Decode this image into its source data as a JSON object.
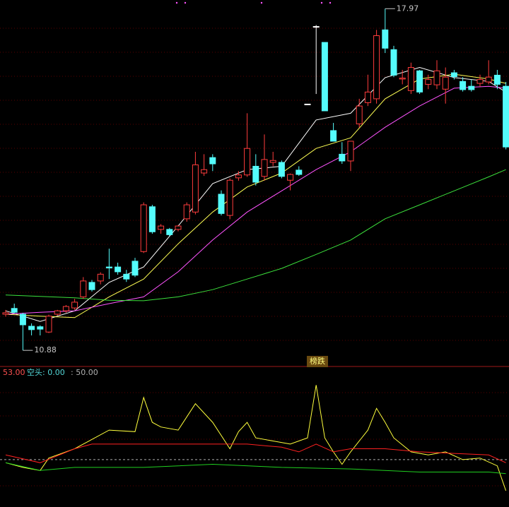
{
  "chart_data": [
    {
      "type": "candlestick",
      "ylim": [
        10.56,
        18.15
      ],
      "up_color": "#ff3c3c",
      "down_color": "#54fcfc",
      "open": [
        11.63,
        11.75,
        11.63,
        11.38,
        11.37,
        11.26,
        11.63,
        11.7,
        11.76,
        11.99,
        12.29,
        12.32,
        12.61,
        12.61,
        12.46,
        12.73,
        12.93,
        13.86,
        13.39,
        13.39,
        13.39,
        13.61,
        13.75,
        14.56,
        14.88,
        14.12,
        13.68,
        14.46,
        14.52,
        14.7,
        14.49,
        14.78,
        14.78,
        14.41,
        14.62,
        15.99,
        17.6,
        17.27,
        15.44,
        14.95,
        14.81,
        15.58,
        16.02,
        16.1,
        17.53,
        17.12,
        16.51,
        16.27,
        16.68,
        16.4,
        16.39,
        16.3,
        16.64,
        16.46,
        16.36,
        16.42,
        16.45,
        16.59,
        16.36
      ],
      "high": [
        11.72,
        11.85,
        11.66,
        11.44,
        11.4,
        11.62,
        11.72,
        11.82,
        11.95,
        12.4,
        12.34,
        12.5,
        12.99,
        12.7,
        12.55,
        12.8,
        13.95,
        13.9,
        13.5,
        13.42,
        13.48,
        13.95,
        15.0,
        14.95,
        14.95,
        14.2,
        14.45,
        14.6,
        15.8,
        14.95,
        15.36,
        15.0,
        14.82,
        14.55,
        14.7,
        15.99,
        17.63,
        17.27,
        15.6,
        15.2,
        15.2,
        16.1,
        16.6,
        17.53,
        17.97,
        17.2,
        16.7,
        16.85,
        16.7,
        16.6,
        16.9,
        16.75,
        16.7,
        16.55,
        16.5,
        16.6,
        16.9,
        16.7,
        16.45
      ],
      "low": [
        11.58,
        11.65,
        10.88,
        11.19,
        11.19,
        11.24,
        11.6,
        11.66,
        11.72,
        11.95,
        12.1,
        12.25,
        12.36,
        12.45,
        12.3,
        12.4,
        12.9,
        13.3,
        13.3,
        13.25,
        13.35,
        13.55,
        13.7,
        14.5,
        14.6,
        13.68,
        13.6,
        14.4,
        14.48,
        14.3,
        14.4,
        14.7,
        14.45,
        14.2,
        14.5,
        15.99,
        16.2,
        15.85,
        15.22,
        14.75,
        14.6,
        15.5,
        15.95,
        16.0,
        17.05,
        16.55,
        16.4,
        16.2,
        16.2,
        16.3,
        16.3,
        16.0,
        16.5,
        16.25,
        16.25,
        16.35,
        16.4,
        16.3,
        15.05
      ],
      "close": [
        11.66,
        11.67,
        11.41,
        11.31,
        11.32,
        11.59,
        11.7,
        11.79,
        11.88,
        12.32,
        12.14,
        12.46,
        12.59,
        12.51,
        12.36,
        12.44,
        13.9,
        13.34,
        13.46,
        13.28,
        13.46,
        13.9,
        14.73,
        14.63,
        14.75,
        13.72,
        14.41,
        14.52,
        15.07,
        14.37,
        14.84,
        14.82,
        14.49,
        14.53,
        14.53,
        15.99,
        17.6,
        15.85,
        15.22,
        14.81,
        15.22,
        15.95,
        16.24,
        17.41,
        17.15,
        16.59,
        16.53,
        16.75,
        16.24,
        16.5,
        16.68,
        16.55,
        16.56,
        16.29,
        16.29,
        16.5,
        16.55,
        16.4,
        15.1
      ],
      "series": [
        {
          "color": "#ffffff",
          "x": [
            0,
            4,
            8,
            12,
            16,
            20,
            24,
            28,
            32,
            36,
            40,
            44,
            48,
            52,
            56,
            58
          ],
          "values": [
            11.7,
            11.48,
            11.7,
            12.29,
            12.61,
            13.46,
            14.34,
            14.63,
            14.7,
            15.66,
            15.8,
            16.54,
            16.75,
            16.54,
            16.46,
            16.24
          ]
        },
        {
          "color": "#ffff54",
          "x": [
            0,
            4,
            8,
            12,
            16,
            20,
            24,
            28,
            32,
            36,
            40,
            44,
            48,
            52,
            56,
            58
          ],
          "values": [
            11.63,
            11.59,
            11.56,
            11.99,
            12.36,
            13.09,
            13.75,
            14.27,
            14.56,
            15.07,
            15.29,
            16.1,
            16.51,
            16.61,
            16.51,
            16.42
          ]
        },
        {
          "color": "#ff54ff",
          "x": [
            0,
            4,
            8,
            12,
            16,
            20,
            24,
            28,
            32,
            36,
            40,
            44,
            48,
            52,
            56,
            58
          ],
          "values": [
            11.63,
            11.67,
            11.7,
            11.85,
            11.99,
            12.51,
            13.17,
            13.75,
            14.19,
            14.63,
            15.0,
            15.51,
            15.95,
            16.32,
            16.36,
            16.32
          ]
        },
        {
          "color": "#3ce03c",
          "x": [
            0,
            4,
            8,
            12,
            16,
            20,
            24,
            28,
            32,
            36,
            40,
            44,
            48,
            52,
            56,
            58
          ],
          "values": [
            12.03,
            12.0,
            11.97,
            11.92,
            11.91,
            11.99,
            12.14,
            12.36,
            12.58,
            12.87,
            13.17,
            13.61,
            13.9,
            14.19,
            14.48,
            14.63
          ]
        }
      ],
      "annotations": [
        17.97,
        10.88
      ],
      "badge": "榜跌"
    },
    {
      "type": "line",
      "ylim": [
        19.5,
        109.5
      ],
      "labels": [
        "53.00",
        "空头: 0.00",
        ": 50.00"
      ],
      "reference_line": 50,
      "series": [
        {
          "color": "#ffff3c",
          "x": [
            0,
            2,
            4,
            5,
            8,
            12,
            15,
            16,
            17,
            18,
            20,
            22,
            24,
            26,
            27,
            28,
            29,
            31,
            33,
            35,
            36,
            37,
            38,
            39,
            40,
            42,
            43,
            44,
            45,
            47,
            49,
            51,
            53,
            55,
            57,
            58
          ],
          "values": [
            48,
            45,
            43,
            51,
            57,
            69,
            68,
            90,
            74,
            71,
            69,
            86,
            74,
            57,
            68,
            74,
            64,
            62,
            60,
            64,
            98,
            64,
            55,
            47,
            55,
            69,
            83,
            74,
            64,
            55,
            53,
            55,
            50,
            51,
            46,
            30
          ]
        },
        {
          "color": "#ff2020",
          "x": [
            0,
            4,
            8,
            10,
            14,
            20,
            24,
            28,
            32,
            34,
            36,
            38,
            40,
            44,
            48,
            52,
            56,
            58
          ],
          "values": [
            53,
            48,
            57,
            60,
            60,
            60,
            60,
            60,
            58,
            55,
            60,
            55,
            57,
            57,
            55,
            54,
            53,
            48
          ]
        },
        {
          "color": "#20d020",
          "x": [
            0,
            4,
            8,
            16,
            24,
            32,
            40,
            48,
            56,
            58
          ],
          "values": [
            48,
            43,
            45,
            45,
            47,
            45,
            44,
            42,
            42,
            41
          ]
        }
      ]
    }
  ]
}
